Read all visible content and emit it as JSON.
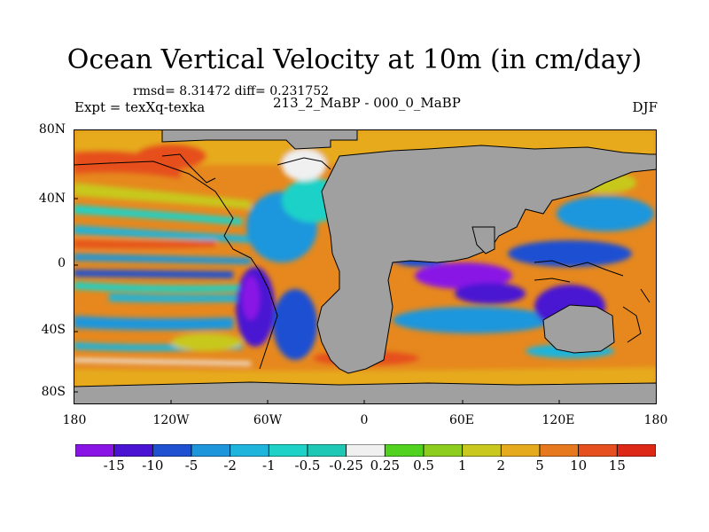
{
  "title": "Ocean Vertical Velocity at 10m (in cm/day)",
  "stats": "rmsd= 8.31472 diff= 0.231752",
  "experiment": "Expt = texXq-texka",
  "difference": "213_2_MaBP - 000_0_MaBP",
  "season": "DJF",
  "latitude_labels": [
    "80N",
    "40N",
    "0",
    "40S",
    "80S"
  ],
  "longitude_labels": [
    "180",
    "120W",
    "60W",
    "0",
    "60E",
    "120E",
    "180"
  ],
  "legend": {
    "labels": [
      "-15",
      "-10",
      "-5",
      "-2",
      "-1",
      "-0.5",
      "-0.25",
      "0.25",
      "0.5",
      "1",
      "2",
      "5",
      "10",
      "15"
    ],
    "colors": [
      "#8a14e6",
      "#4a14d2",
      "#1e50d2",
      "#1e96dc",
      "#1eb4dc",
      "#1ed2c8",
      "#1ec8b4",
      "#f0f0f0",
      "#50d21e",
      "#8ccd1e",
      "#c8c81e",
      "#e6aa1e",
      "#e6781e",
      "#e6501e",
      "#dc2814"
    ]
  },
  "map_colors": {
    "land": "#a0a0a0",
    "background_ocean": "#e6881e",
    "coastline": "#000000"
  }
}
